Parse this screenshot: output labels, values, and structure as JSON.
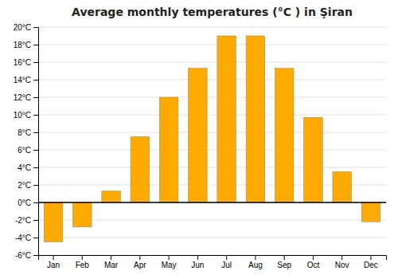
{
  "chart_data": {
    "type": "bar",
    "title": "Average monthly temperatures (°C ) in Şiran",
    "categories": [
      "Jan",
      "Feb",
      "Mar",
      "Apr",
      "May",
      "Jun",
      "Jul",
      "Aug",
      "Sep",
      "Oct",
      "Nov",
      "Dec"
    ],
    "values": [
      -4.5,
      -2.8,
      1.3,
      7.5,
      12.0,
      15.3,
      19.0,
      19.0,
      15.3,
      9.7,
      3.5,
      -2.2
    ],
    "color": "#FFAA00",
    "ylim": [
      -6,
      20
    ],
    "yticks": [
      {
        "value": -6,
        "label": "-6°C"
      },
      {
        "value": -4,
        "label": "-4°C"
      },
      {
        "value": -2,
        "label": "-2°C"
      },
      {
        "value": 0,
        "label": "0°C"
      },
      {
        "value": 2,
        "label": "2°C"
      },
      {
        "value": 4,
        "label": "4°C"
      },
      {
        "value": 6,
        "label": "6°C"
      },
      {
        "value": 8,
        "label": "8°C"
      },
      {
        "value": 10,
        "label": "10°C"
      },
      {
        "value": 12,
        "label": "12°C"
      },
      {
        "value": 14,
        "label": "14°C"
      },
      {
        "value": 16,
        "label": "16°C"
      },
      {
        "value": 18,
        "label": "18°C"
      },
      {
        "value": 20,
        "label": "20°C"
      }
    ],
    "grid": true
  }
}
